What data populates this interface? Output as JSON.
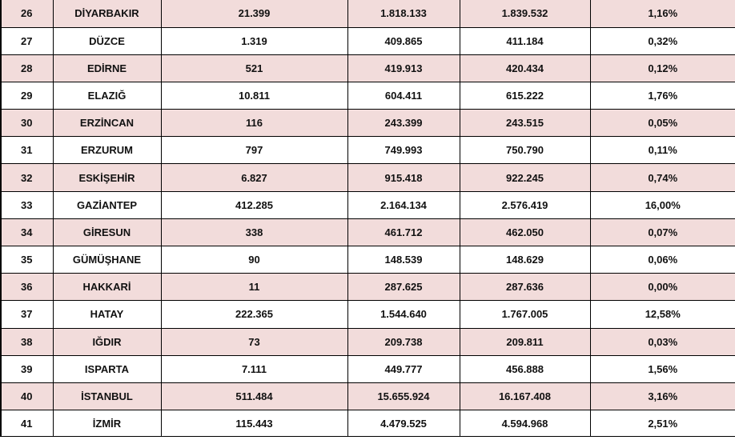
{
  "table": {
    "rows": [
      {
        "no": "26",
        "province": "DİYARBAKIR",
        "col_a": "21.399",
        "col_b": "1.818.133",
        "total": "1.839.532",
        "percent": "1,16%"
      },
      {
        "no": "27",
        "province": "DÜZCE",
        "col_a": "1.319",
        "col_b": "409.865",
        "total": "411.184",
        "percent": "0,32%"
      },
      {
        "no": "28",
        "province": "EDİRNE",
        "col_a": "521",
        "col_b": "419.913",
        "total": "420.434",
        "percent": "0,12%"
      },
      {
        "no": "29",
        "province": "ELAZIĞ",
        "col_a": "10.811",
        "col_b": "604.411",
        "total": "615.222",
        "percent": "1,76%"
      },
      {
        "no": "30",
        "province": "ERZİNCAN",
        "col_a": "116",
        "col_b": "243.399",
        "total": "243.515",
        "percent": "0,05%"
      },
      {
        "no": "31",
        "province": "ERZURUM",
        "col_a": "797",
        "col_b": "749.993",
        "total": "750.790",
        "percent": "0,11%"
      },
      {
        "no": "32",
        "province": "ESKİŞEHİR",
        "col_a": "6.827",
        "col_b": "915.418",
        "total": "922.245",
        "percent": "0,74%"
      },
      {
        "no": "33",
        "province": "GAZİANTEP",
        "col_a": "412.285",
        "col_b": "2.164.134",
        "total": "2.576.419",
        "percent": "16,00%"
      },
      {
        "no": "34",
        "province": "GİRESUN",
        "col_a": "338",
        "col_b": "461.712",
        "total": "462.050",
        "percent": "0,07%"
      },
      {
        "no": "35",
        "province": "GÜMÜŞHANE",
        "col_a": "90",
        "col_b": "148.539",
        "total": "148.629",
        "percent": "0,06%"
      },
      {
        "no": "36",
        "province": "HAKKARİ",
        "col_a": "11",
        "col_b": "287.625",
        "total": "287.636",
        "percent": "0,00%"
      },
      {
        "no": "37",
        "province": "HATAY",
        "col_a": "222.365",
        "col_b": "1.544.640",
        "total": "1.767.005",
        "percent": "12,58%"
      },
      {
        "no": "38",
        "province": "IĞDIR",
        "col_a": "73",
        "col_b": "209.738",
        "total": "209.811",
        "percent": "0,03%"
      },
      {
        "no": "39",
        "province": "ISPARTA",
        "col_a": "7.111",
        "col_b": "449.777",
        "total": "456.888",
        "percent": "1,56%"
      },
      {
        "no": "40",
        "province": "İSTANBUL",
        "col_a": "511.484",
        "col_b": "15.655.924",
        "total": "16.167.408",
        "percent": "3,16%"
      },
      {
        "no": "41",
        "province": "İZMİR",
        "col_a": "115.443",
        "col_b": "4.479.525",
        "total": "4.594.968",
        "percent": "2,51%"
      }
    ]
  },
  "colors": {
    "shaded_row": "#f2dcdb",
    "plain_row": "#ffffff",
    "border": "#000000"
  }
}
